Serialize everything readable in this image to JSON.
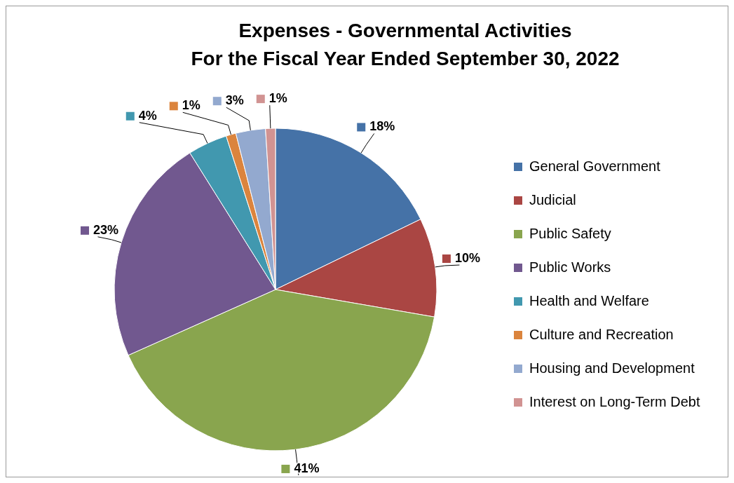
{
  "chart_data": {
    "type": "pie",
    "title": "Expenses - Governmental Activities\nFor the Fiscal Year Ended September 30, 2022",
    "categories": [
      "General Government",
      "Judicial",
      "Public Safety",
      "Public Works",
      "Health and Welfare",
      "Culture and Recreation",
      "Housing and Development",
      "Interest on Long-Term Debt"
    ],
    "values": [
      18,
      10,
      41,
      23,
      4,
      1,
      3,
      1
    ],
    "value_labels": [
      "18%",
      "10%",
      "41%",
      "23%",
      "4%",
      "1%",
      "3%",
      "1%"
    ],
    "colors": [
      "#4572a7",
      "#aa4643",
      "#89a54e",
      "#71588f",
      "#4198af",
      "#db843d",
      "#93a9cf",
      "#d19392"
    ],
    "legend": "right"
  }
}
